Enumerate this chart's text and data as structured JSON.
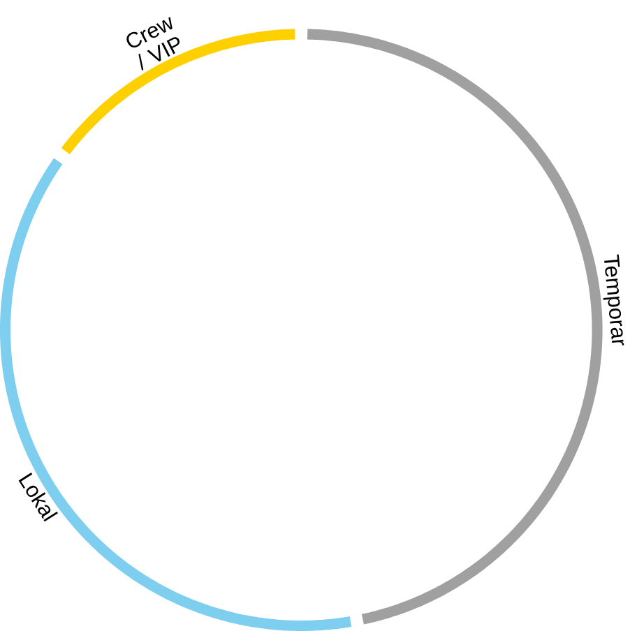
{
  "chart_data": {
    "type": "donut",
    "categories": [
      "Temporar",
      "Lokal",
      "Crew / VIP"
    ],
    "values": [
      47,
      38,
      15
    ],
    "colors": [
      "#a0a0a0",
      "#7ecef0",
      "#ffd000"
    ]
  }
}
